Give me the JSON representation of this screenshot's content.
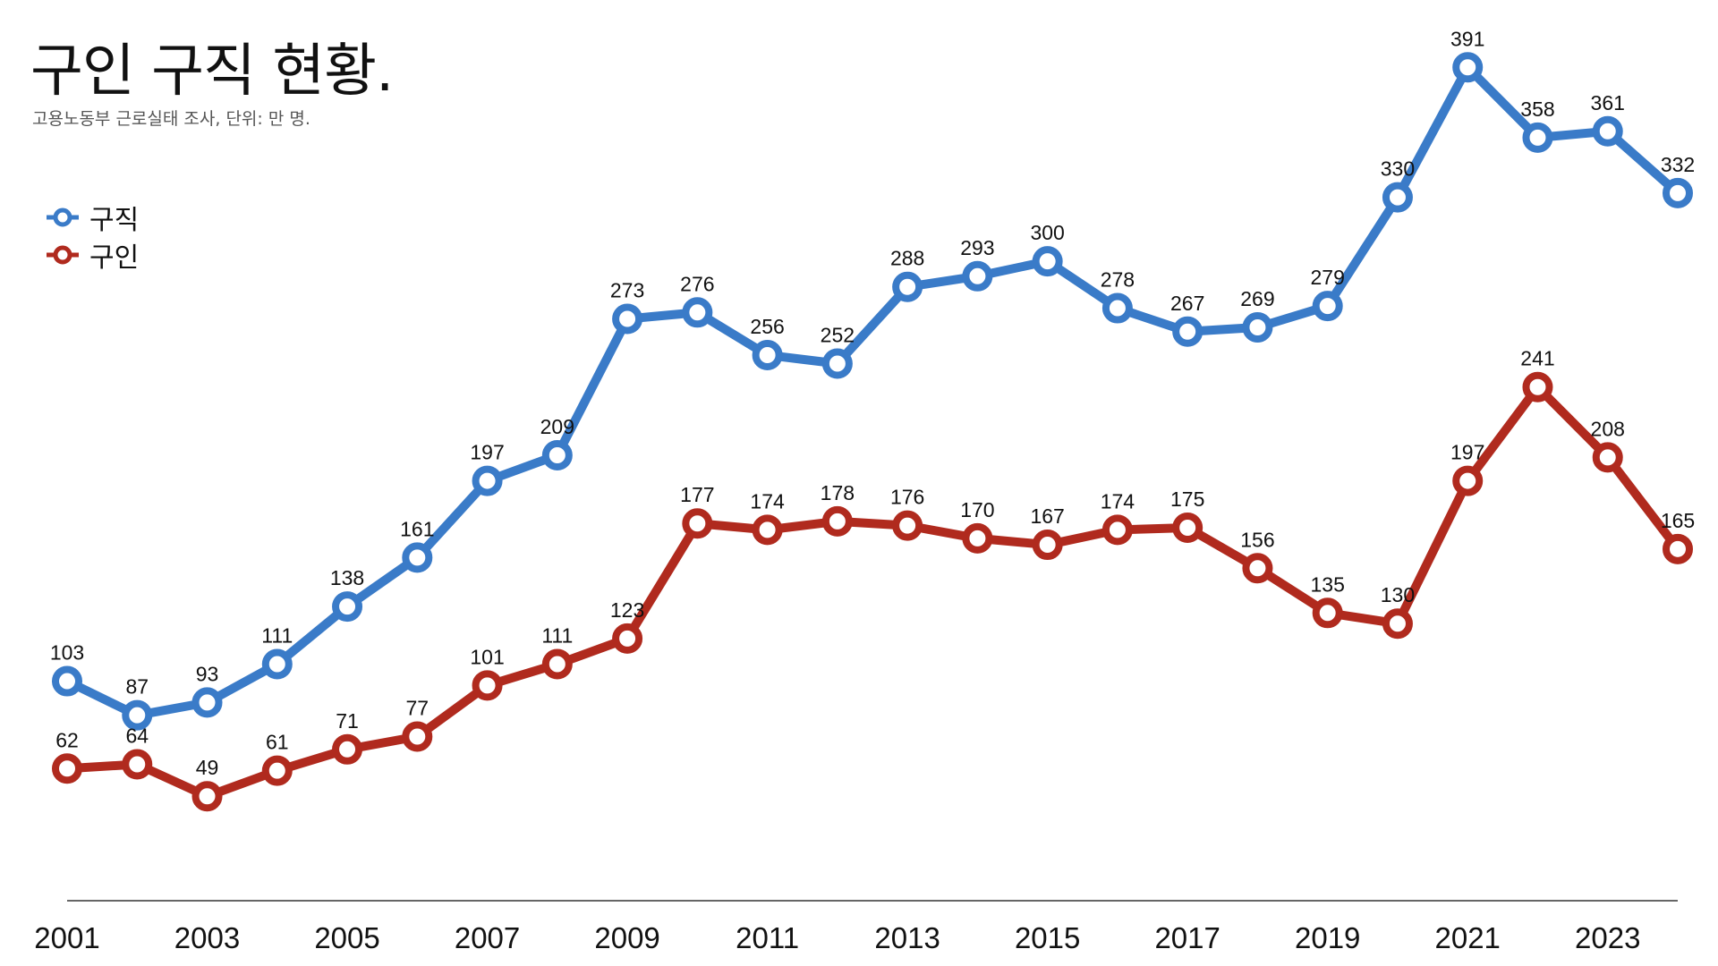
{
  "chart_data": {
    "type": "line",
    "title": "구인 구직 현황.",
    "subtitle": "고용노동부 근로실태 조사, 단위: 만 명.",
    "x": [
      2001,
      2002,
      2003,
      2004,
      2005,
      2006,
      2007,
      2008,
      2009,
      2010,
      2011,
      2012,
      2013,
      2014,
      2015,
      2016,
      2017,
      2018,
      2019,
      2020,
      2021,
      2022,
      2023,
      2024
    ],
    "x_tick_labels": [
      "2001",
      "2003",
      "2005",
      "2007",
      "2009",
      "2011",
      "2013",
      "2015",
      "2017",
      "2019",
      "2021",
      "2023"
    ],
    "series": [
      {
        "name": "구직",
        "color": "#3a7bc8",
        "values": [
          103,
          87,
          93,
          111,
          138,
          161,
          197,
          209,
          273,
          276,
          256,
          252,
          288,
          293,
          300,
          278,
          267,
          269,
          279,
          330,
          391,
          358,
          361,
          332
        ]
      },
      {
        "name": "구인",
        "color": "#b02a1e",
        "values": [
          62,
          64,
          49,
          61,
          71,
          77,
          101,
          111,
          123,
          177,
          174,
          178,
          176,
          170,
          167,
          174,
          175,
          156,
          135,
          130,
          197,
          241,
          208,
          165
        ]
      }
    ],
    "xlim": [
      2001,
      2024
    ],
    "ylim": [
      0,
      410
    ],
    "grid": false,
    "legend": "top-left",
    "xlabel": "",
    "ylabel": ""
  }
}
